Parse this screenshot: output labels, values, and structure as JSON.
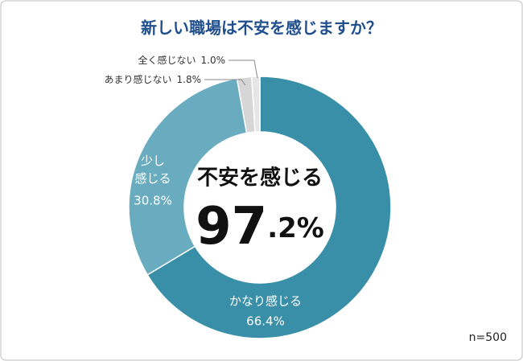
{
  "chart_data": {
    "type": "donut",
    "title": "新しい職場は不安を感じますか？",
    "categories": [
      "かなり感じる",
      "少し感じる",
      "あまり感じない",
      "全く感じない"
    ],
    "values": [
      66.4,
      30.8,
      1.8,
      1.0
    ],
    "value_labels": [
      "66.4%",
      "30.8%",
      "1.8%",
      "1.0%"
    ],
    "colors": [
      "#3a8fa8",
      "#6aacbf",
      "#d6d6d6",
      "#e6e6e6"
    ],
    "center_label": "不安を感じる",
    "center_value_label": "97.2%",
    "note": "n=500"
  }
}
